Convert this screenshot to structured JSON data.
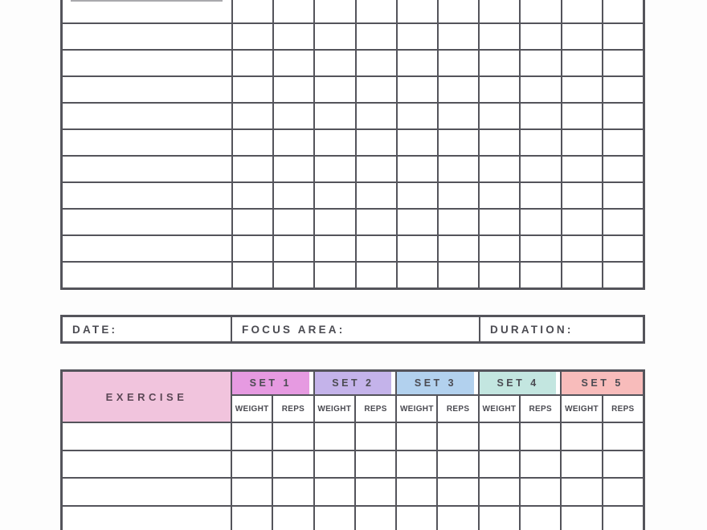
{
  "colors": {
    "border": "#54545b",
    "text": "#4b4b52",
    "page_bg": "#fdfdfd",
    "cell_bg": "#ffffff",
    "exercise_header_bg": "#f1c4dd",
    "exercise_header_text": "#5a4755"
  },
  "top_grid": {
    "label_columns": 1,
    "narrow_columns": 10,
    "visible_rows": 11
  },
  "session_bar": {
    "fields": [
      {
        "label": "DATE:"
      },
      {
        "label": "FOCUS AREA:"
      },
      {
        "label": "DURATION:"
      }
    ]
  },
  "exercise_table": {
    "exercise_header": "EXERCISE",
    "sets": [
      {
        "label": "SET 1",
        "color": "#e69ae1"
      },
      {
        "label": "SET 2",
        "color": "#c4b3ea"
      },
      {
        "label": "SET 3",
        "color": "#b2d1ee"
      },
      {
        "label": "SET 4",
        "color": "#c3e6e0"
      },
      {
        "label": "SET 5",
        "color": "#f8bcbb"
      }
    ],
    "sub_headers": [
      "WEIGHT",
      "REPS"
    ],
    "visible_body_rows": 4
  }
}
